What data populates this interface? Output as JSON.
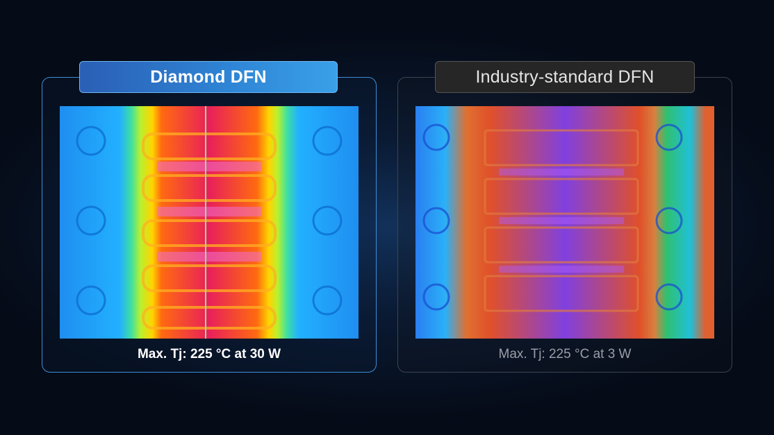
{
  "panels": [
    {
      "title": "Diamond DFN",
      "caption": "Max. Tj: 225 °C at 30 W",
      "image": "thermal-image-hot-die-cool-leads"
    },
    {
      "title": "Industry-standard DFN",
      "caption": "Max. Tj: 225 °C at 3 W",
      "image": "thermal-image-warm-package"
    }
  ],
  "colors": {
    "accent": "#2f86d6",
    "panel_border_left": "#3f8fd6",
    "panel_border_right": "#3c4450",
    "background": "#050b17"
  }
}
